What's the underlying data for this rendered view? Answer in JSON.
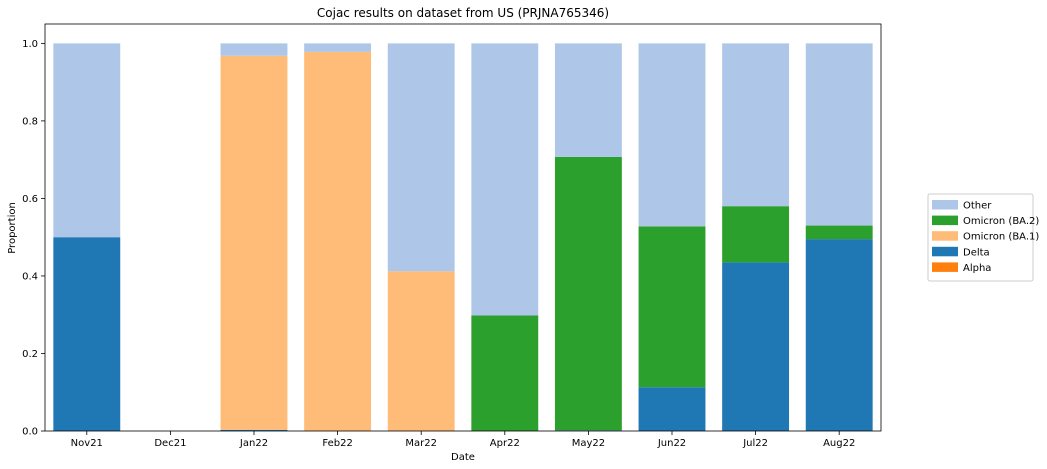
{
  "chart_data": {
    "type": "bar",
    "stacked": true,
    "title": "Cojac results on dataset from US (PRJNA765346)",
    "xlabel": "Date",
    "ylabel": "Proportion",
    "ylim": [
      0,
      1.05
    ],
    "yticks": [
      "0.0",
      "0.2",
      "0.4",
      "0.6",
      "0.8",
      "1.0"
    ],
    "ytick_values": [
      0,
      0.2,
      0.4,
      0.6,
      0.8,
      1.0
    ],
    "grid": false,
    "legend_placement": "outside-top-right",
    "categories": [
      "Nov21",
      "Dec21",
      "Jan22",
      "Feb22",
      "Mar22",
      "Apr22",
      "May22",
      "Jun22",
      "Jul22",
      "Aug22"
    ],
    "series": [
      {
        "name": "Alpha",
        "color": "#ff7f0e",
        "values": [
          0,
          0,
          0,
          0,
          0,
          0,
          0,
          0,
          0,
          0
        ]
      },
      {
        "name": "Delta",
        "color": "#1f77b4",
        "values": [
          0.5,
          0,
          0.003,
          0,
          0,
          0,
          0.002,
          0.113,
          0.435,
          0.495
        ]
      },
      {
        "name": "Omicron (BA.1)",
        "color": "#ffbb78",
        "values": [
          0,
          0,
          0.965,
          0.978,
          0.412,
          0,
          0,
          0,
          0,
          0
        ]
      },
      {
        "name": "Omicron (BA.2)",
        "color": "#2ca02c",
        "values": [
          0,
          0,
          0,
          0,
          0,
          0.298,
          0.705,
          0.415,
          0.145,
          0.035
        ]
      },
      {
        "name": "Other",
        "color": "#aec7e8",
        "values": [
          0.5,
          0,
          0.032,
          0.022,
          0.588,
          0.702,
          0.293,
          0.472,
          0.42,
          0.47
        ]
      }
    ],
    "legend_order": [
      "Other",
      "Omicron (BA.2)",
      "Omicron (BA.1)",
      "Delta",
      "Alpha"
    ]
  }
}
